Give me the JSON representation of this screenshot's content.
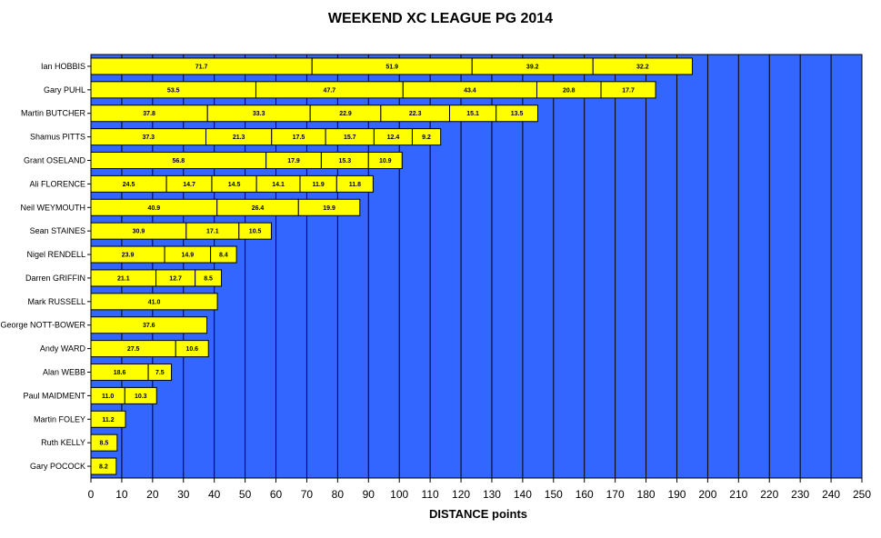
{
  "chart_data": {
    "type": "bar",
    "orientation": "horizontal",
    "stacked": true,
    "title": "WEEKEND XC LEAGUE PG 2014",
    "xlabel": "DISTANCE points",
    "ylabel": "",
    "xlim": [
      0,
      250
    ],
    "xticks": [
      0,
      10,
      20,
      30,
      40,
      50,
      60,
      70,
      80,
      90,
      100,
      110,
      120,
      130,
      140,
      150,
      160,
      170,
      180,
      190,
      200,
      210,
      220,
      230,
      240,
      250
    ],
    "grid": true,
    "legend": "none",
    "colors": {
      "plot_background": "#3366ff",
      "bar_fill": "#ffff00",
      "bar_stroke": "#000000",
      "gridline": "#000000"
    },
    "categories": [
      "Ian HOBBIS",
      "Gary PUHL",
      "Martin BUTCHER",
      "Shamus PITTS",
      "Grant OSELAND",
      "Ali FLORENCE",
      "Neil WEYMOUTH",
      "Sean STAINES",
      "Nigel RENDELL",
      "Darren GRIFFIN",
      "Mark RUSSELL",
      "George NOTT-BOWER",
      "Andy WARD",
      "Alan WEBB",
      "Paul MAIDMENT",
      "Martin FOLEY",
      "Ruth KELLY",
      "Gary POCOCK"
    ],
    "values": [
      [
        71.7,
        51.9,
        39.2,
        32.2
      ],
      [
        53.5,
        47.7,
        43.4,
        20.8,
        17.7
      ],
      [
        37.8,
        33.3,
        22.9,
        22.3,
        15.1,
        13.5
      ],
      [
        37.3,
        21.3,
        17.5,
        15.7,
        12.4,
        9.2
      ],
      [
        56.8,
        17.9,
        15.3,
        10.9
      ],
      [
        24.5,
        14.7,
        14.5,
        14.1,
        11.9,
        11.8
      ],
      [
        40.9,
        26.4,
        19.9
      ],
      [
        30.9,
        17.1,
        10.5
      ],
      [
        23.9,
        14.9,
        8.4
      ],
      [
        21.1,
        12.7,
        8.5
      ],
      [
        41.0
      ],
      [
        37.6
      ],
      [
        27.5,
        10.6
      ],
      [
        18.6,
        7.5
      ],
      [
        11.0,
        10.3
      ],
      [
        11.2
      ],
      [
        8.5
      ],
      [
        8.2
      ]
    ]
  }
}
